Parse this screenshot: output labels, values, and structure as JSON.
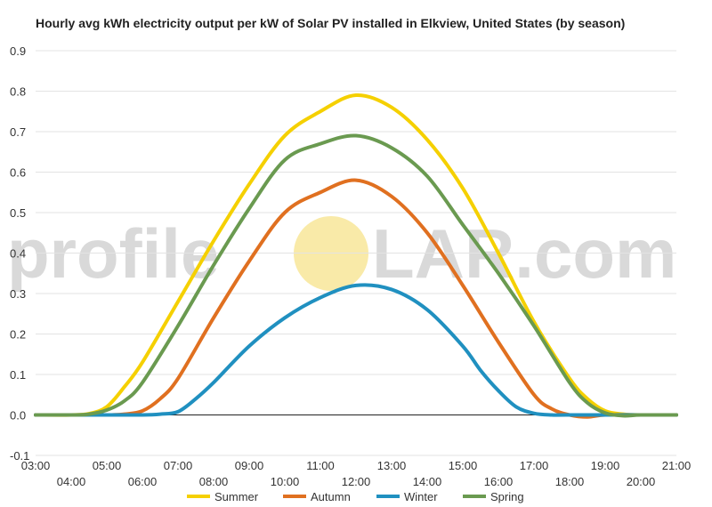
{
  "chart_data": {
    "type": "line",
    "title": "Hourly avg kWh electricity output per kW of Solar PV installed in Elkview, United States (by season)",
    "xlabel": "",
    "ylabel": "",
    "x_ticks": [
      "03:00",
      "04:00",
      "05:00",
      "06:00",
      "07:00",
      "08:00",
      "09:00",
      "10:00",
      "11:00",
      "12:00",
      "13:00",
      "14:00",
      "15:00",
      "16:00",
      "17:00",
      "18:00",
      "19:00",
      "20:00",
      "21:00"
    ],
    "xlim": [
      3,
      21
    ],
    "ylim": [
      -0.1,
      0.9
    ],
    "y_ticks": [
      "-0.1",
      "0.0",
      "0.1",
      "0.2",
      "0.3",
      "0.4",
      "0.5",
      "0.6",
      "0.7",
      "0.8",
      "0.9"
    ],
    "grid": true,
    "legend_position": "bottom",
    "series": [
      {
        "name": "Summer",
        "color": "#f5d000",
        "x": [
          3,
          4,
          4.5,
          5,
          5.5,
          6,
          7,
          8,
          9,
          10,
          11,
          12,
          13,
          14,
          15,
          16,
          17,
          18,
          18.5,
          19,
          19.5,
          20,
          21
        ],
        "values": [
          0,
          0,
          0.003,
          0.02,
          0.07,
          0.13,
          0.28,
          0.43,
          0.57,
          0.69,
          0.75,
          0.79,
          0.76,
          0.68,
          0.56,
          0.4,
          0.23,
          0.09,
          0.04,
          0.01,
          0.002,
          0,
          0
        ]
      },
      {
        "name": "Autumn",
        "color": "#e07020",
        "x": [
          3,
          4,
          5,
          5.5,
          6,
          6.5,
          7,
          8,
          9,
          10,
          11,
          12,
          13,
          14,
          15,
          16,
          17,
          17.5,
          18,
          18.5,
          19,
          20,
          21
        ],
        "values": [
          0,
          0,
          0,
          0.002,
          0.01,
          0.04,
          0.09,
          0.24,
          0.38,
          0.5,
          0.55,
          0.58,
          0.54,
          0.45,
          0.32,
          0.18,
          0.05,
          0.015,
          0,
          -0.005,
          0,
          0,
          0
        ]
      },
      {
        "name": "Winter",
        "color": "#2090c0",
        "x": [
          3,
          5,
          6,
          6.5,
          7,
          7.5,
          8,
          9,
          10,
          11,
          12,
          13,
          14,
          15,
          15.5,
          16,
          16.5,
          17,
          17.5,
          18,
          21
        ],
        "values": [
          0,
          0,
          0,
          0.002,
          0.008,
          0.04,
          0.08,
          0.17,
          0.24,
          0.29,
          0.32,
          0.31,
          0.26,
          0.17,
          0.11,
          0.06,
          0.02,
          0.004,
          0,
          0,
          0
        ]
      },
      {
        "name": "Spring",
        "color": "#6a9a50",
        "x": [
          3,
          4,
          4.5,
          5,
          5.5,
          6,
          7,
          8,
          9,
          10,
          11,
          12,
          13,
          14,
          15,
          16,
          17,
          18,
          18.5,
          19,
          19.5,
          20,
          21
        ],
        "values": [
          0,
          0,
          0.002,
          0.012,
          0.035,
          0.08,
          0.22,
          0.37,
          0.51,
          0.63,
          0.67,
          0.69,
          0.66,
          0.59,
          0.47,
          0.35,
          0.22,
          0.08,
          0.03,
          0.005,
          -0.002,
          0,
          0
        ]
      }
    ]
  },
  "watermark": {
    "left": "profile",
    "right": "LAR.com",
    "sun_color": "#f9eaa8"
  }
}
